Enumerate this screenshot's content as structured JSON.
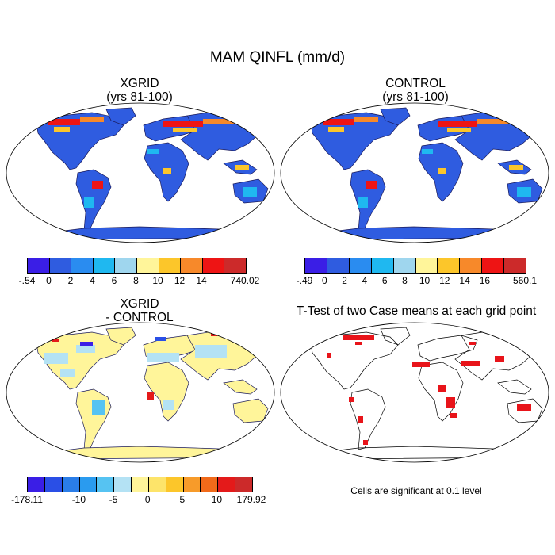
{
  "figure": {
    "title": "MAM QINFL (mm/d)",
    "panels": {
      "xgrid": {
        "title_line1": "XGRID",
        "title_line2": "(yrs 81-100)"
      },
      "control": {
        "title_line1": "CONTROL",
        "title_line2": "(yrs 81-100)"
      },
      "diff": {
        "title_line1": "XGRID",
        "title_line2": "- CONTROL"
      },
      "ttest": {
        "title": "T-Test of two Case means at each grid point",
        "note": "Cells are significant at 0.1 level"
      }
    }
  },
  "colorbars": {
    "xgrid": {
      "colors": [
        "#3a1ee6",
        "#2f5ce0",
        "#2a8cf0",
        "#1fb8f0",
        "#9fd6ee",
        "#fff59a",
        "#fcc62a",
        "#f7892a",
        "#ee1414",
        "#cc2a2a"
      ],
      "labels": [
        "-.54",
        "0",
        "2",
        "4",
        "6",
        "8",
        "10",
        "12",
        "14",
        "740.02"
      ]
    },
    "control": {
      "colors": [
        "#3a1ee6",
        "#2f5ce0",
        "#2a8cf0",
        "#1fb8f0",
        "#9fd6ee",
        "#fff59a",
        "#fcc62a",
        "#f7892a",
        "#ee1414",
        "#cc2a2a"
      ],
      "labels": [
        ".49",
        "0",
        "2",
        "4",
        "6",
        "8",
        "10",
        "12",
        "14",
        "16",
        "560.1"
      ],
      "label_prefix": "-"
    },
    "diff": {
      "colors": [
        "#3a1ee6",
        "#2a4fe6",
        "#2a7de8",
        "#2a9bef",
        "#56c3f2",
        "#b4e2f4",
        "#fff59a",
        "#fde46a",
        "#fcc62a",
        "#f79b2a",
        "#f16a1a",
        "#e41a1a",
        "#cc2a2a"
      ],
      "labels": [
        "-178.11",
        "-10",
        "-5",
        "0",
        "5",
        "10",
        "179.92"
      ]
    }
  },
  "legend_meta": {
    "ttest_mark_color": "#e8141a",
    "coastline_color": "#000000"
  }
}
